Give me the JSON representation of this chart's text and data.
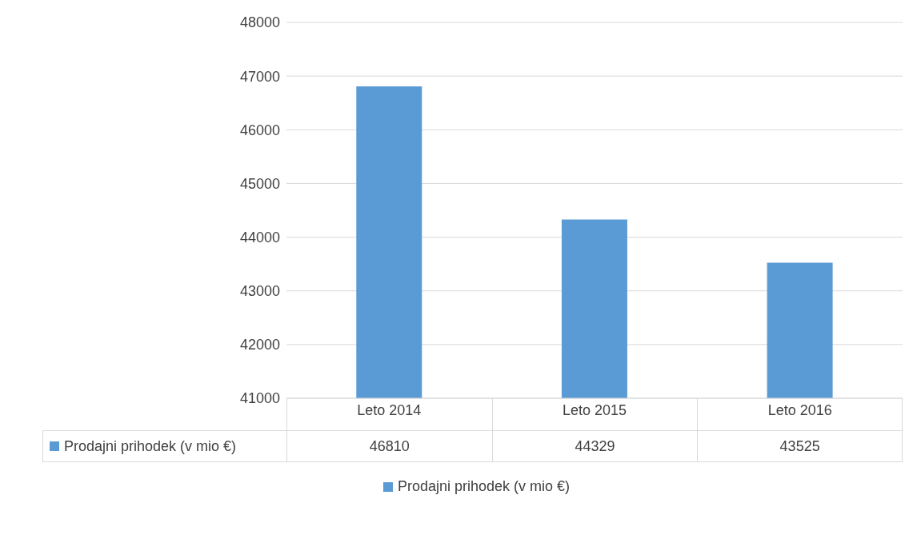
{
  "chart_data": {
    "type": "bar",
    "categories": [
      "Leto 2014",
      "Leto 2015",
      "Leto 2016"
    ],
    "series": [
      {
        "name": "Prodajni prihodek (v mio €)",
        "color": "#5b9bd5",
        "values": [
          46810,
          44329,
          43525
        ]
      }
    ],
    "ylim": [
      41000,
      48000
    ],
    "yticks": [
      41000,
      42000,
      43000,
      44000,
      45000,
      46000,
      47000,
      48000
    ],
    "grid": "y",
    "legend": "bottom",
    "data_labels": true
  }
}
